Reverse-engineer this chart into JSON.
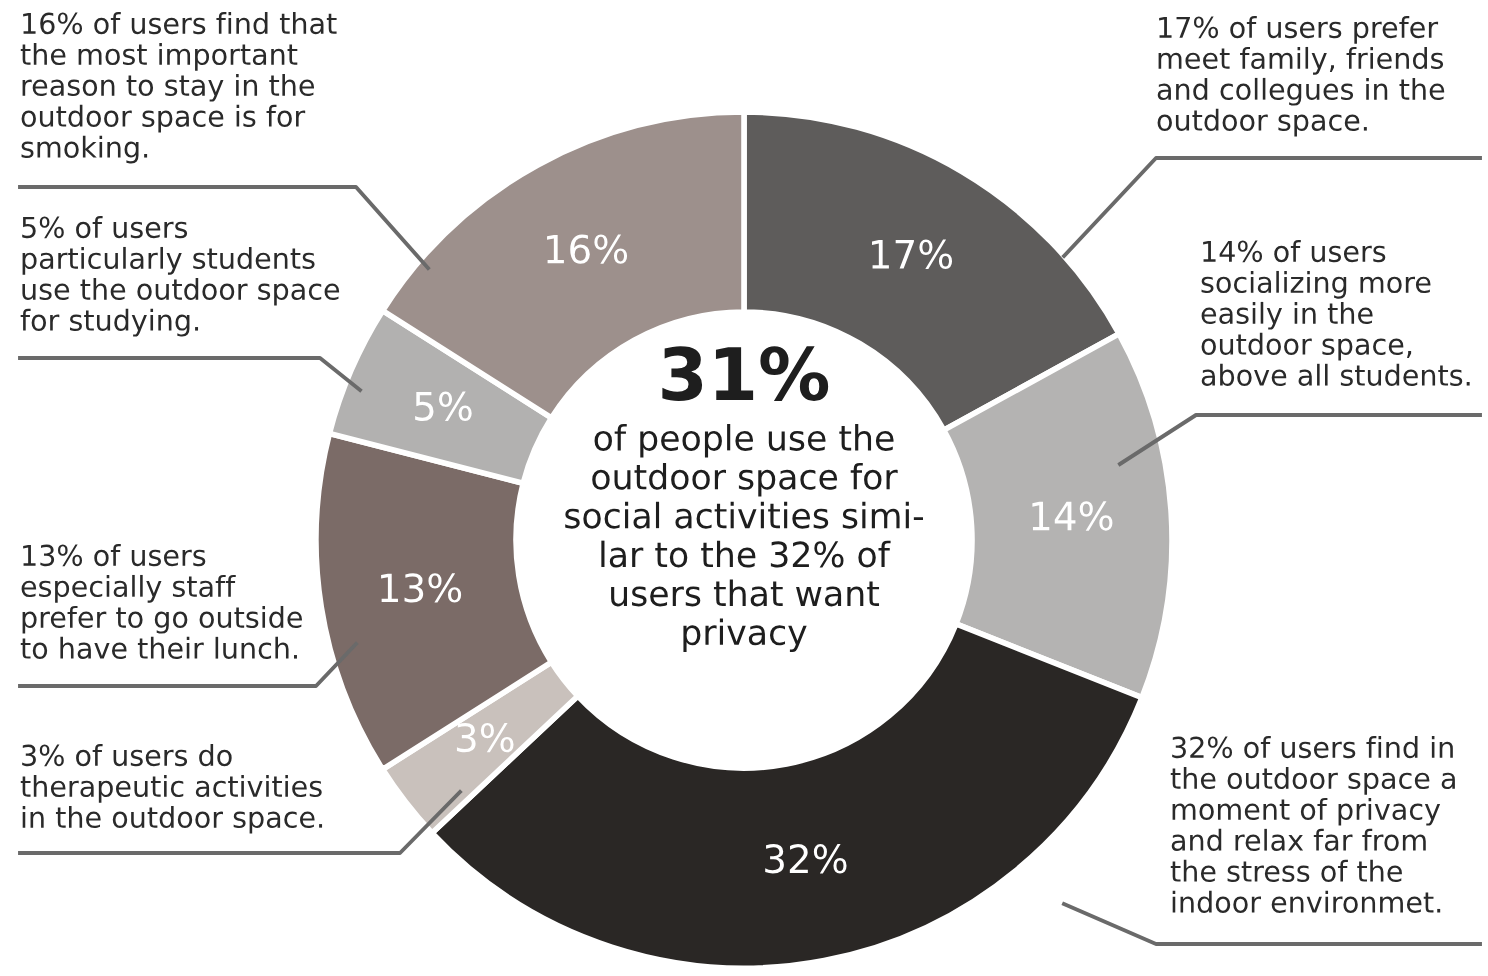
{
  "chart_data": {
    "type": "donut",
    "categories": [
      null,
      null,
      null,
      null,
      null,
      null,
      null
    ],
    "values": [
      17,
      14,
      32,
      3,
      13,
      5,
      16
    ],
    "value_labels": [
      "17%",
      "14%",
      "32%",
      "3%",
      "13%",
      "5%",
      "16%"
    ],
    "colors": [
      "#5e5c5b",
      "#b4b3b2",
      "#2a2725",
      "#c9c1bc",
      "#7b6b67",
      "#b2b1b0",
      "#9d908c"
    ],
    "legend": false,
    "annotations": [
      "17% of users prefer\nmeet family, friends\nand collegues in the\noutdoor space.",
      "14% of users\nsocializing more\neasily in the\noutdoor space,\nabove all students.",
      "32% of users find in\nthe outdoor space a\nmoment of privacy\nand relax far from\nthe stress of the\nindoor environmet.",
      "3% of users do\ntherapeutic activities\nin the outdoor space.",
      "13% of users\nespecially staff\nprefer to go outside\nto have their lunch.",
      "5% of users\nparticularly students\nuse the outdoor space\nfor studying.",
      "16% of users find that\nthe most important\nreason to stay in the\noutdoor space is for\nsmoking.",
      "31%",
      "of people use the\noutdoor space for\nsocial activities simi-\nlar to the 32% of\nusers that want\nprivacy"
    ]
  }
}
